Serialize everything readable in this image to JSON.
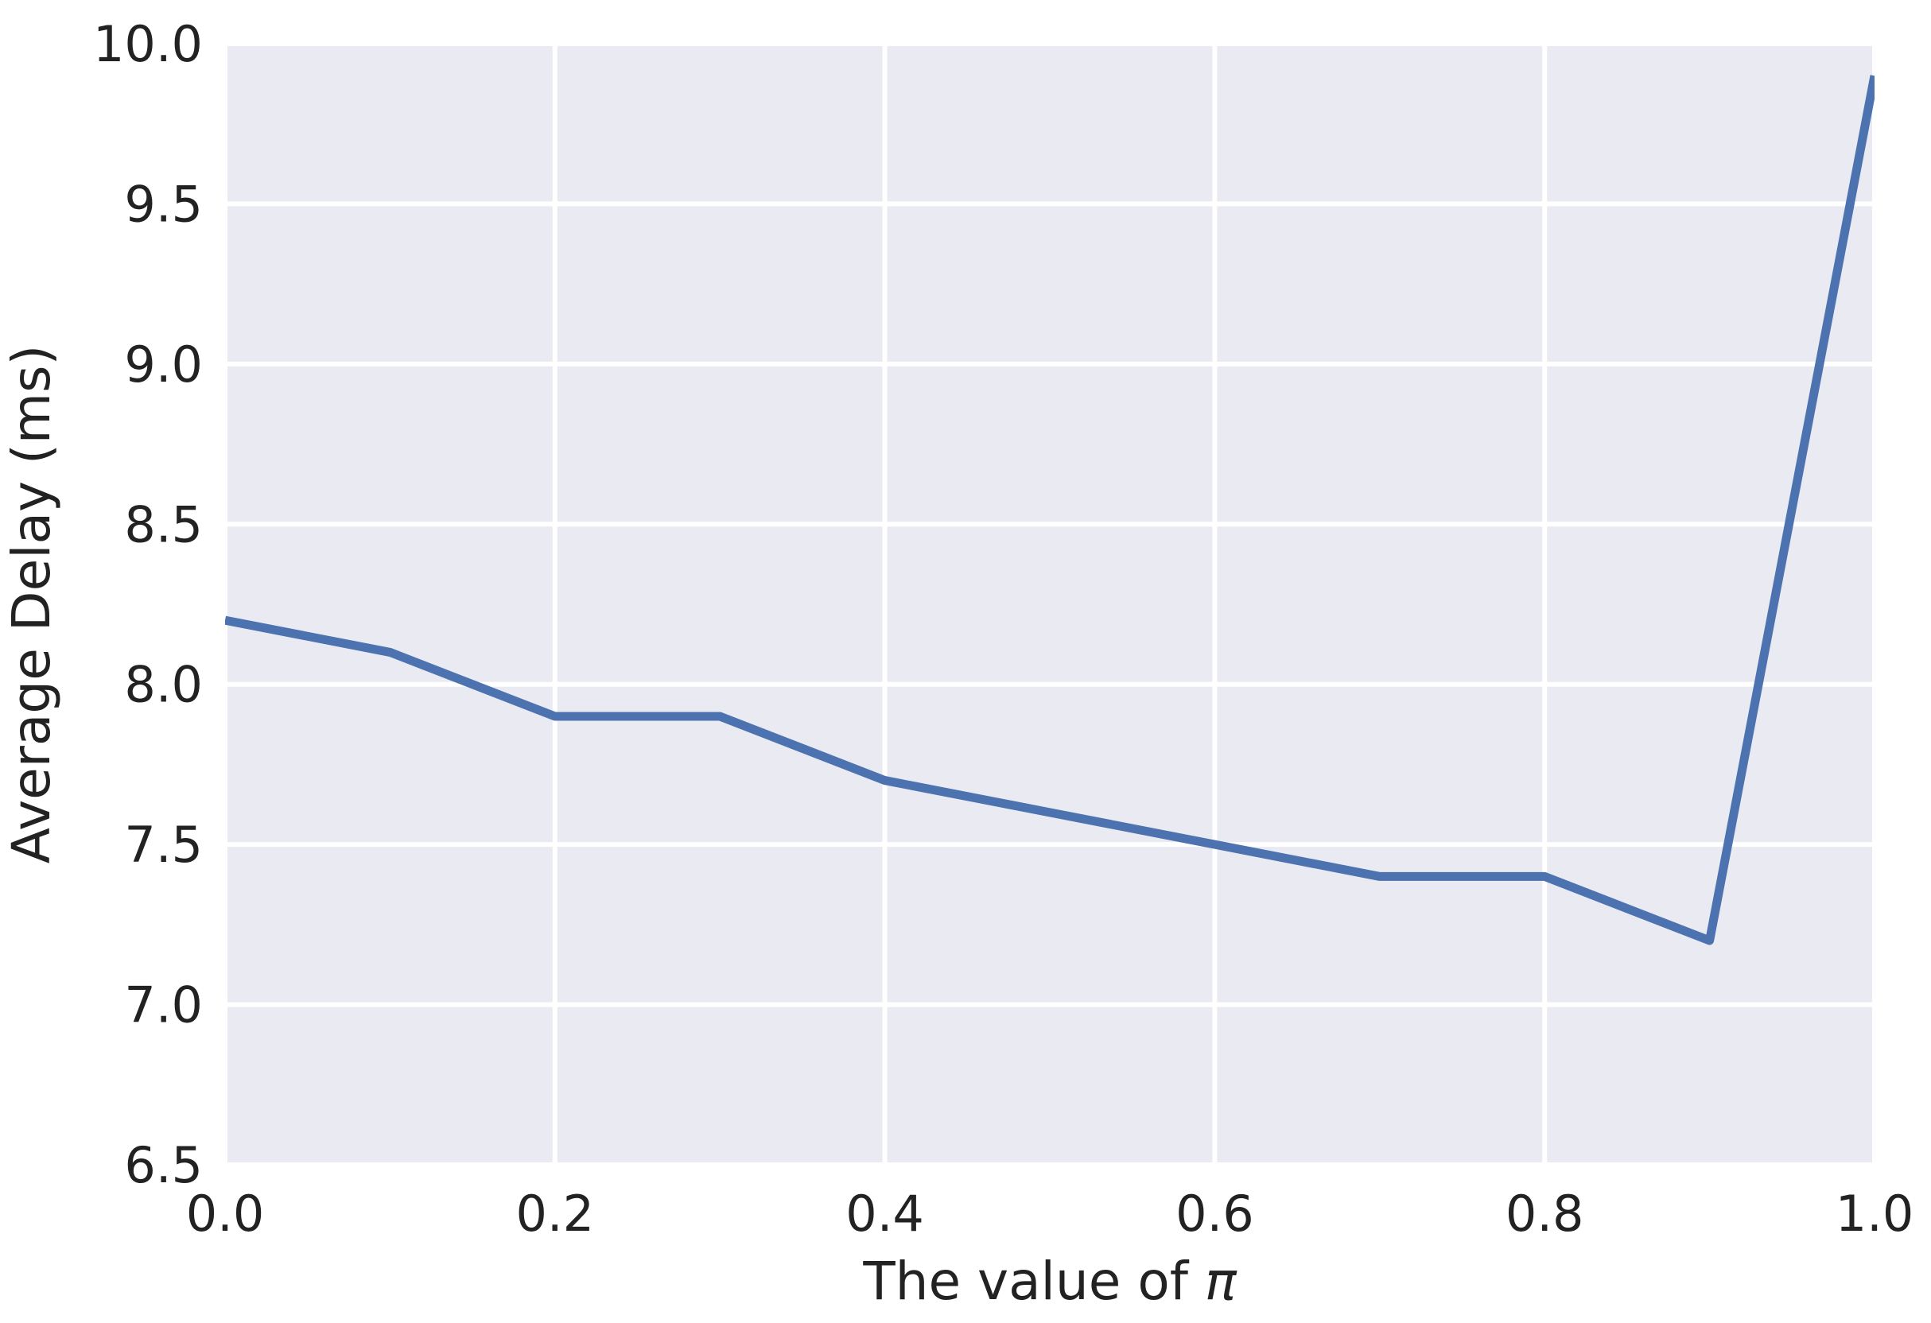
{
  "chart_data": {
    "type": "line",
    "x": [
      0.0,
      0.1,
      0.2,
      0.3,
      0.4,
      0.5,
      0.6,
      0.7,
      0.8,
      0.9,
      1.0
    ],
    "series": [
      {
        "name": "Average Delay",
        "values": [
          8.2,
          8.1,
          7.9,
          7.9,
          7.7,
          7.6,
          7.5,
          7.4,
          7.4,
          7.2,
          9.9
        ]
      }
    ],
    "title": "",
    "xlabel": "The value of π",
    "xlabel_text": "The value of ",
    "xlabel_symbol": "π",
    "ylabel": "Average Delay (ms)",
    "xlim": [
      0.0,
      1.0
    ],
    "ylim": [
      6.5,
      10.0
    ],
    "xticks": [
      "0.0",
      "0.2",
      "0.4",
      "0.6",
      "0.8",
      "1.0"
    ],
    "yticks": [
      "10.0",
      "9.5",
      "9.0",
      "8.5",
      "8.0",
      "7.5",
      "7.0",
      "6.5"
    ],
    "grid": true,
    "legend": "none",
    "colors": {
      "line": "#4C72B0",
      "plot_background": "#EAEAF2",
      "grid": "#FFFFFF",
      "text": "#222222",
      "figure_background": "#FFFFFF"
    }
  }
}
